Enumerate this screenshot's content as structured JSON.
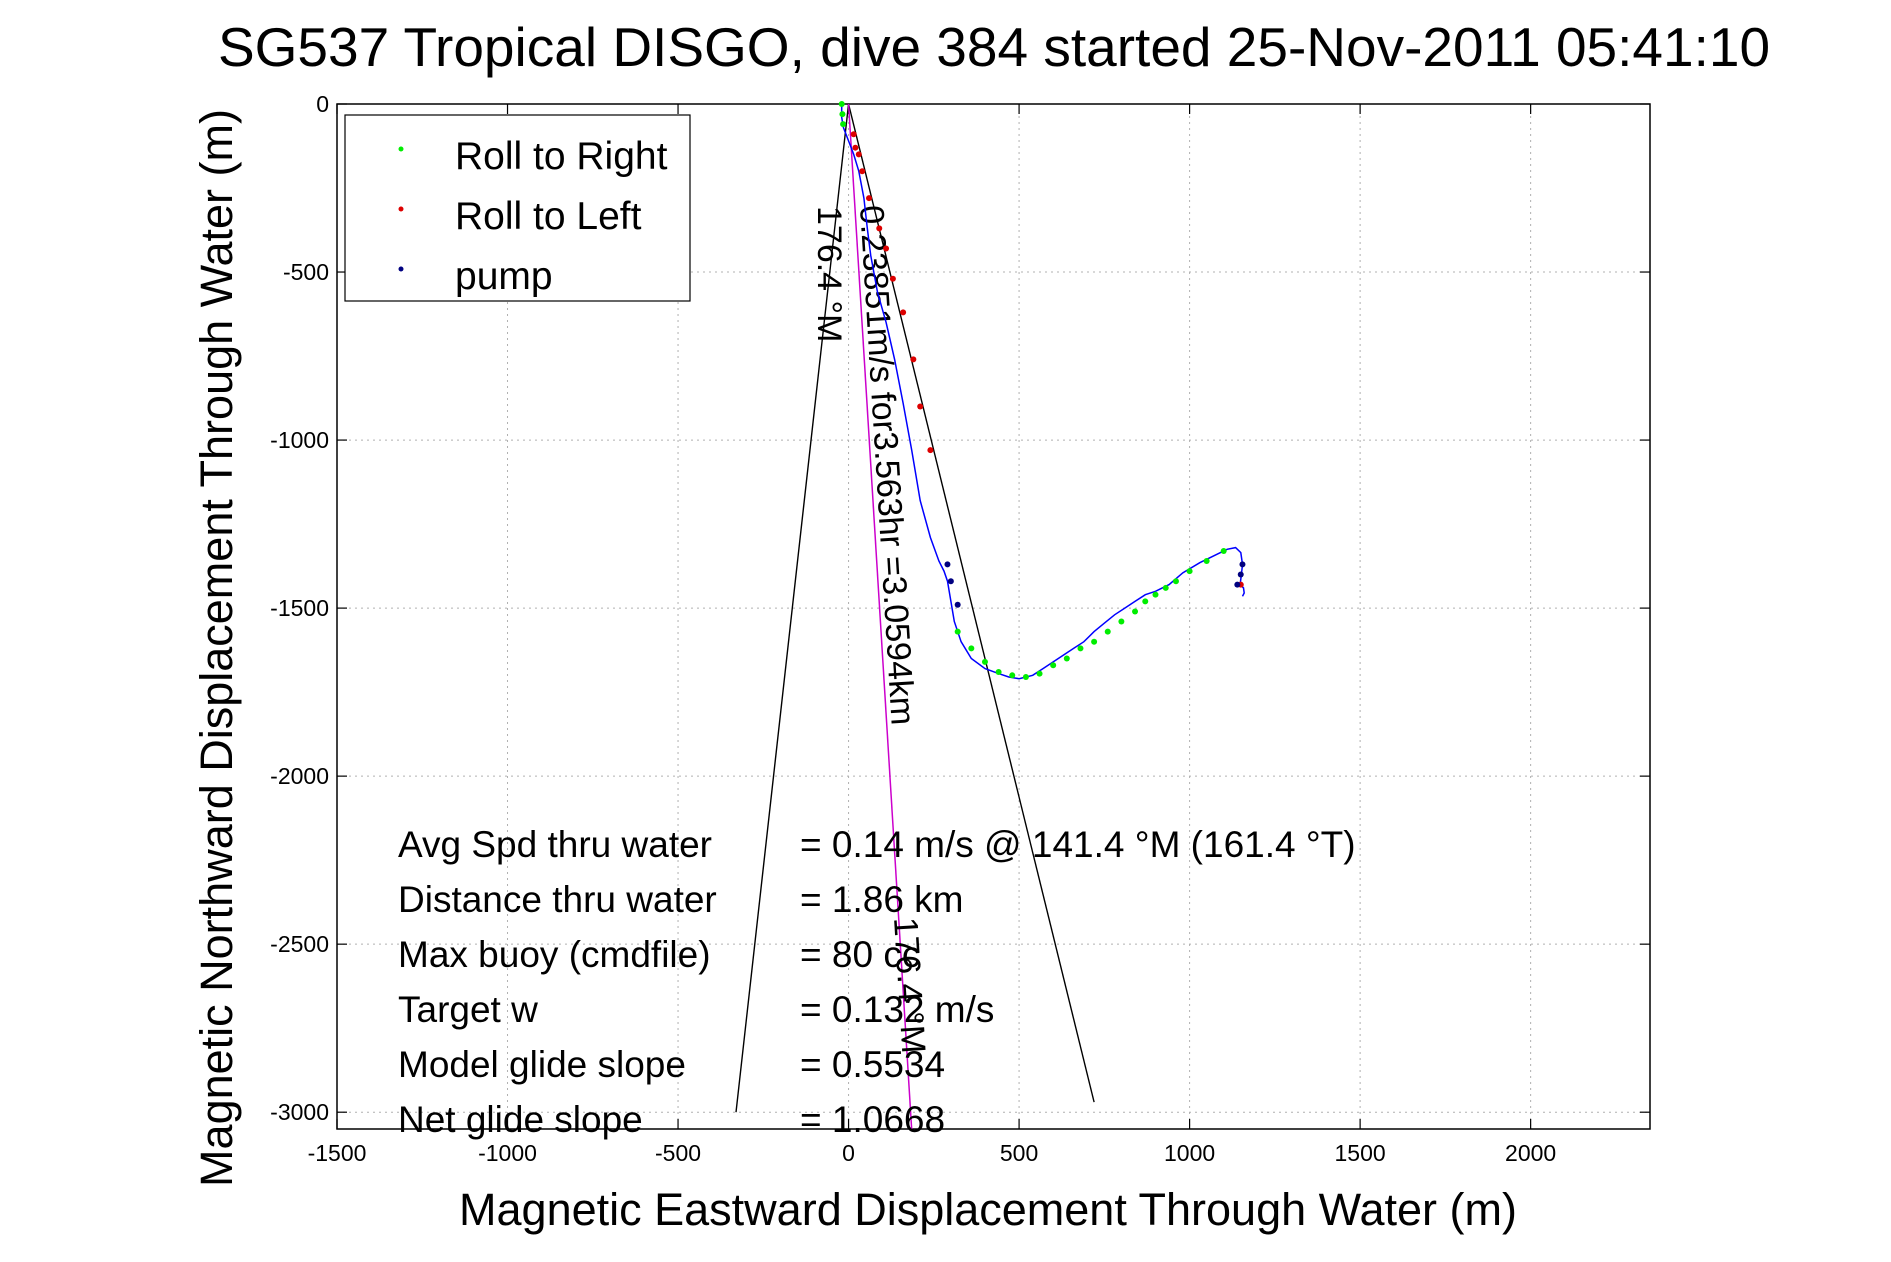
{
  "chart_data": {
    "type": "line",
    "title": "SG537 Tropical DISGO, dive 384 started 25-Nov-2011 05:41:10",
    "xlabel": "Magnetic Eastward Displacement Through Water (m)",
    "ylabel": "Magnetic Northward Displacement Through Water (m)",
    "xlim": [
      -1500,
      2350
    ],
    "ylim": [
      -3050,
      0
    ],
    "x_ticks": [
      -1500,
      -1000,
      -500,
      0,
      500,
      1000,
      1500,
      2000
    ],
    "y_ticks": [
      0,
      -500,
      -1000,
      -1500,
      -2000,
      -2500,
      -3000
    ],
    "x_tick_labels": [
      "-1500",
      "-1000",
      "-500",
      "0",
      "500",
      "1000",
      "1500",
      "2000"
    ],
    "y_tick_labels": [
      "0",
      "-500",
      "-1000",
      "-1500",
      "-2000",
      "-2500",
      "-3000"
    ],
    "grid": true,
    "legend_position": "top-left",
    "legend": [
      {
        "label": "Roll to Right",
        "color": "#00ee00"
      },
      {
        "label": "Roll to Left",
        "color": "#dd0000"
      },
      {
        "label": "pump",
        "color": "#000080"
      }
    ],
    "track": {
      "color": "#0000ff",
      "x": [
        -20,
        -20,
        -15,
        0,
        15,
        30,
        45,
        55,
        65,
        85,
        110,
        135,
        160,
        185,
        210,
        240,
        265,
        280,
        290,
        300,
        310,
        330,
        360,
        400,
        440,
        470,
        500,
        540,
        570,
        600,
        630,
        660,
        690,
        720,
        750,
        780,
        810,
        840,
        870,
        900,
        940,
        980,
        1030,
        1080,
        1110,
        1135,
        1150,
        1155,
        1152,
        1148,
        1158,
        1160,
        1155
      ],
      "y": [
        0,
        -40,
        -70,
        -110,
        -150,
        -200,
        -280,
        -370,
        -450,
        -560,
        -650,
        -760,
        -890,
        -1030,
        -1180,
        -1290,
        -1360,
        -1390,
        -1420,
        -1480,
        -1540,
        -1600,
        -1650,
        -1680,
        -1695,
        -1705,
        -1710,
        -1700,
        -1680,
        -1660,
        -1640,
        -1620,
        -1600,
        -1570,
        -1545,
        -1520,
        -1500,
        -1480,
        -1460,
        -1450,
        -1430,
        -1395,
        -1365,
        -1340,
        -1325,
        -1320,
        -1335,
        -1370,
        -1400,
        -1430,
        -1440,
        -1455,
        -1465
      ]
    },
    "series": [
      {
        "name": "Roll to Right",
        "color": "#00ee00",
        "x": [
          -20,
          -18,
          -16,
          320,
          360,
          400,
          440,
          480,
          520,
          560,
          600,
          640,
          680,
          720,
          760,
          800,
          840,
          870,
          900,
          930,
          960,
          1000,
          1050,
          1100
        ],
        "y": [
          0,
          -30,
          -60,
          -1570,
          -1620,
          -1660,
          -1690,
          -1700,
          -1705,
          -1695,
          -1670,
          -1650,
          -1620,
          -1600,
          -1570,
          -1540,
          -1510,
          -1480,
          -1460,
          -1440,
          -1420,
          -1390,
          -1360,
          -1330
        ]
      },
      {
        "name": "Roll to Left",
        "color": "#dd0000",
        "x": [
          15,
          20,
          30,
          40,
          60,
          90,
          110,
          130,
          160,
          190,
          210,
          240,
          1150
        ],
        "y": [
          -90,
          -130,
          -150,
          -200,
          -280,
          -370,
          -430,
          -520,
          -620,
          -760,
          -900,
          -1030,
          -1430
        ]
      },
      {
        "name": "pump",
        "color": "#000080",
        "x": [
          290,
          300,
          320,
          1155,
          1150,
          1140
        ],
        "y": [
          -1370,
          -1420,
          -1490,
          -1370,
          -1400,
          -1430
        ]
      }
    ],
    "heading_lines": [
      {
        "label": "176.4 °M",
        "x1": 0,
        "y1": 0,
        "x2": -330,
        "y2": -3000
      },
      {
        "label": "",
        "x1": 0,
        "y1": 0,
        "x2": 720,
        "y2": -2970
      }
    ],
    "current_line": {
      "label": "0.23851m/s for3.563hr =3.0594km",
      "label2": "176.4 °M",
      "color": "#cc00cc",
      "x1": 0,
      "y1": 0,
      "x2": 185,
      "y2": -3050
    },
    "info_box": [
      {
        "label": "Avg Spd thru water",
        "value": "=  0.14 m/s @ 141.4 °M (161.4 °T)"
      },
      {
        "label": "Distance thru water",
        "value": "=  1.86 km"
      },
      {
        "label": "Max buoy (cmdfile)",
        "value": "= 80 cc"
      },
      {
        "label": "Target w",
        "value": "= 0.132 m/s"
      },
      {
        "label": "Model glide slope",
        "value": "= 0.5534"
      },
      {
        "label": "Net glide slope",
        "value": "= 1.0668"
      }
    ]
  }
}
